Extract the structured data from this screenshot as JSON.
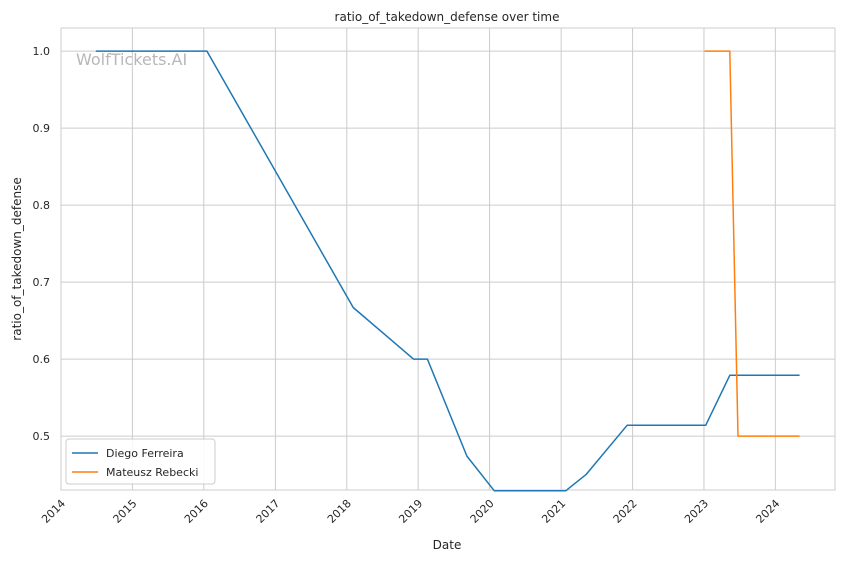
{
  "chart_data": {
    "type": "line",
    "title": "ratio_of_takedown_defense over time",
    "xlabel": "Date",
    "ylabel": "ratio_of_takedown_defense",
    "watermark": "WolfTickets.AI",
    "x_ticks": [
      "2014",
      "2015",
      "2016",
      "2017",
      "2018",
      "2019",
      "2020",
      "2021",
      "2022",
      "2023",
      "2024"
    ],
    "y_ticks": [
      "0.5",
      "0.6",
      "0.7",
      "0.8",
      "0.9",
      "1.0"
    ],
    "xlim": [
      "2014-01-01",
      "2024-11-01"
    ],
    "ylim": [
      0.43,
      1.03
    ],
    "grid": true,
    "legend_position": "lower-left",
    "series": [
      {
        "name": "Diego Ferreira",
        "color": "#1f77b4",
        "x": [
          "2014-06-28",
          "2016-01-17",
          "2018-02-03",
          "2018-12-08",
          "2019-02-17",
          "2019-09-07",
          "2020-01-25",
          "2021-01-24",
          "2021-05-08",
          "2021-12-04",
          "2023-01-10",
          "2023-05-13",
          "2024-05-04"
        ],
        "values": [
          1.0,
          1.0,
          0.667,
          0.6,
          0.6,
          0.474,
          0.429,
          0.429,
          0.45,
          0.514,
          0.514,
          0.579,
          0.579
        ]
      },
      {
        "name": "Mateusz Rebecki",
        "color": "#ff7f0e",
        "x": [
          "2023-01-04",
          "2023-05-13",
          "2023-06-24",
          "2024-05-04"
        ],
        "values": [
          1.0,
          1.0,
          0.5,
          0.5
        ]
      }
    ]
  }
}
